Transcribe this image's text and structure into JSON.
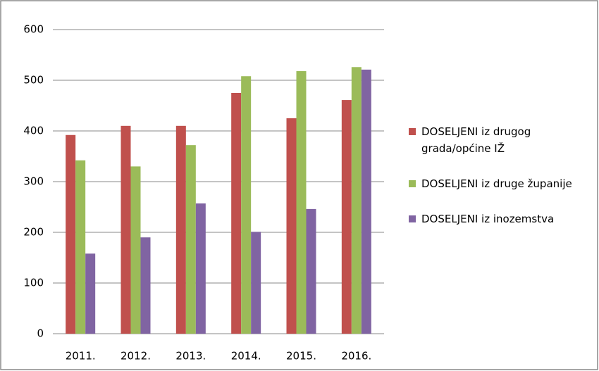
{
  "chart_data": {
    "type": "bar",
    "categories": [
      "2011.",
      "2012.",
      "2013.",
      "2014.",
      "2015.",
      "2016."
    ],
    "series": [
      {
        "name": "DOSELJENI iz drugog grada/općine IŽ",
        "color": "#c0504d",
        "values": [
          392,
          410,
          410,
          475,
          425,
          461
        ]
      },
      {
        "name": "DOSELJENI iz druge županije",
        "color": "#9bbb59",
        "values": [
          342,
          330,
          372,
          508,
          518,
          526
        ]
      },
      {
        "name": "DOSELJENI iz inozemstva",
        "color": "#8064a2",
        "values": [
          158,
          190,
          257,
          201,
          246,
          521
        ]
      }
    ],
    "ylim": [
      0,
      600
    ],
    "yticks": [
      0,
      100,
      200,
      300,
      400,
      500,
      600
    ],
    "grid": true,
    "legend": "right"
  }
}
